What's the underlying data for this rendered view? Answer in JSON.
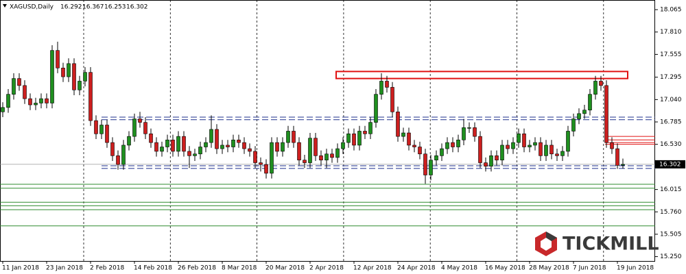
{
  "chart_data": {
    "type": "candlestick",
    "header": {
      "symbol": "XAGUSD,Daily"
    },
    "watermark": "TICKMILL",
    "ylim": [
      15.2,
      18.175
    ],
    "yticks": [
      18.065,
      {
        "value": 17.81,
        "label": "17.810"
      },
      17.555,
      17.295,
      {
        "value": 17.04,
        "label": "17.040"
      },
      16.785,
      {
        "value": 16.53,
        "label": "16.530"
      },
      16.015,
      {
        "value": 15.76,
        "label": "15.760"
      },
      15.505,
      {
        "value": 15.25,
        "label": "15.250"
      }
    ],
    "categories": [
      "11 Jan 2018",
      null,
      null,
      null,
      null,
      null,
      null,
      null,
      "23 Jan 2018",
      null,
      null,
      null,
      null,
      null,
      null,
      null,
      "2 Feb 2018",
      null,
      null,
      null,
      null,
      null,
      null,
      null,
      "14 Feb 2018",
      null,
      null,
      null,
      null,
      null,
      null,
      null,
      "26 Feb 2018",
      null,
      null,
      null,
      null,
      null,
      null,
      null,
      "8 Mar 2018",
      null,
      null,
      null,
      null,
      null,
      null,
      null,
      "20 Mar 2018",
      null,
      null,
      null,
      null,
      null,
      null,
      null,
      "2 Apr 2018",
      null,
      null,
      null,
      null,
      null,
      null,
      null,
      "12 Apr 2018",
      null,
      null,
      null,
      null,
      null,
      null,
      null,
      "24 Apr 2018",
      null,
      null,
      null,
      null,
      null,
      null,
      null,
      "4 May 2018",
      null,
      null,
      null,
      null,
      null,
      null,
      null,
      "16 May 2018",
      null,
      null,
      null,
      null,
      null,
      null,
      null,
      "28 May 2018",
      null,
      null,
      null,
      null,
      null,
      null,
      null,
      "7 Jun 2018",
      null,
      null,
      null,
      null,
      null,
      null,
      null,
      "19 Jun 2018",
      null
    ],
    "open": [
      16.9,
      16.95,
      17.1,
      17.28,
      17.2,
      17.05,
      16.98,
      17.0,
      17.05,
      17.0,
      17.6,
      17.4,
      17.3,
      17.45,
      17.15,
      17.25,
      17.35,
      16.8,
      16.65,
      16.75,
      16.55,
      16.4,
      16.3,
      16.52,
      16.62,
      16.82,
      16.78,
      16.65,
      16.55,
      16.45,
      16.5,
      16.58,
      16.45,
      16.62,
      16.45,
      16.4,
      16.42,
      16.5,
      16.55,
      16.7,
      16.48,
      16.52,
      16.5,
      16.58,
      16.55,
      16.48,
      16.45,
      16.32,
      16.3,
      16.2,
      16.55,
      16.45,
      16.55,
      16.68,
      16.55,
      16.35,
      16.32,
      16.6,
      16.4,
      16.35,
      16.42,
      16.38,
      16.48,
      16.55,
      16.65,
      16.52,
      16.68,
      16.65,
      16.78,
      17.1,
      17.25,
      17.18,
      16.9,
      16.62,
      16.66,
      16.52,
      16.5,
      16.42,
      16.18,
      16.35,
      16.4,
      16.48,
      16.55,
      16.5,
      16.58,
      16.72,
      16.72,
      16.62,
      16.32,
      16.28,
      16.4,
      16.35,
      16.52,
      16.48,
      16.55,
      16.65,
      16.5,
      16.52,
      16.55,
      16.4,
      16.52,
      16.42,
      16.4,
      16.45,
      16.68,
      16.82,
      16.88,
      16.92,
      17.1,
      17.25,
      17.2,
      16.55,
      16.48,
      16.292
    ],
    "high": [
      17.01,
      17.16,
      17.34,
      17.34,
      17.26,
      17.11,
      17.06,
      17.11,
      17.11,
      17.66,
      17.7,
      17.46,
      17.51,
      17.51,
      17.31,
      17.41,
      17.41,
      16.86,
      16.81,
      16.81,
      16.61,
      16.46,
      16.58,
      16.68,
      16.88,
      16.9,
      16.84,
      16.71,
      16.61,
      16.56,
      16.64,
      16.64,
      16.68,
      16.68,
      16.51,
      16.48,
      16.56,
      16.61,
      16.86,
      16.76,
      16.58,
      16.58,
      16.64,
      16.64,
      16.61,
      16.54,
      16.51,
      16.38,
      16.36,
      16.61,
      16.61,
      16.61,
      16.74,
      16.74,
      16.61,
      16.41,
      16.66,
      16.66,
      16.46,
      16.48,
      16.48,
      16.54,
      16.61,
      16.71,
      16.71,
      16.74,
      16.74,
      16.84,
      17.16,
      17.34,
      17.31,
      17.24,
      16.96,
      16.72,
      16.72,
      16.58,
      16.56,
      16.48,
      16.41,
      16.46,
      16.54,
      16.61,
      16.61,
      16.64,
      16.82,
      16.78,
      16.78,
      16.68,
      16.38,
      16.46,
      16.46,
      16.58,
      16.58,
      16.61,
      16.71,
      16.71,
      16.58,
      16.61,
      16.61,
      16.58,
      16.58,
      16.48,
      16.51,
      16.74,
      16.88,
      16.94,
      16.98,
      17.16,
      17.31,
      17.31,
      17.26,
      16.61,
      16.54,
      16.367
    ],
    "low": [
      16.84,
      16.89,
      17.04,
      17.14,
      16.99,
      16.92,
      16.92,
      16.94,
      16.94,
      16.94,
      17.34,
      17.24,
      17.24,
      17.09,
      17.09,
      17.19,
      16.74,
      16.59,
      16.59,
      16.49,
      16.34,
      16.24,
      16.24,
      16.46,
      16.56,
      16.72,
      16.59,
      16.49,
      16.39,
      16.39,
      16.44,
      16.39,
      16.39,
      16.39,
      16.26,
      16.34,
      16.36,
      16.44,
      16.49,
      16.42,
      16.42,
      16.44,
      16.44,
      16.49,
      16.42,
      16.39,
      16.26,
      16.22,
      16.14,
      16.14,
      16.39,
      16.39,
      16.49,
      16.49,
      16.29,
      16.26,
      16.26,
      16.34,
      16.29,
      16.26,
      16.32,
      16.32,
      16.42,
      16.49,
      16.46,
      16.46,
      16.59,
      16.59,
      16.72,
      17.04,
      17.12,
      16.84,
      16.56,
      16.56,
      16.46,
      16.44,
      16.36,
      16.08,
      16.12,
      16.29,
      16.34,
      16.42,
      16.44,
      16.44,
      16.52,
      16.66,
      16.56,
      16.26,
      16.22,
      16.22,
      16.29,
      16.29,
      16.42,
      16.42,
      16.49,
      16.44,
      16.44,
      16.46,
      16.34,
      16.34,
      16.36,
      16.34,
      16.34,
      16.39,
      16.62,
      16.76,
      16.82,
      16.86,
      17.04,
      17.14,
      16.49,
      16.42,
      16.25,
      16.253
    ],
    "close": [
      16.95,
      17.1,
      17.28,
      17.2,
      17.05,
      16.98,
      17.0,
      17.05,
      17.0,
      17.6,
      17.4,
      17.3,
      17.45,
      17.15,
      17.25,
      17.35,
      16.8,
      16.65,
      16.75,
      16.55,
      16.4,
      16.3,
      16.52,
      16.62,
      16.82,
      16.78,
      16.65,
      16.55,
      16.45,
      16.5,
      16.58,
      16.45,
      16.62,
      16.45,
      16.4,
      16.42,
      16.5,
      16.55,
      16.7,
      16.48,
      16.52,
      16.5,
      16.58,
      16.55,
      16.48,
      16.45,
      16.32,
      16.3,
      16.2,
      16.55,
      16.45,
      16.55,
      16.68,
      16.55,
      16.35,
      16.32,
      16.6,
      16.4,
      16.35,
      16.42,
      16.38,
      16.48,
      16.55,
      16.65,
      16.52,
      16.68,
      16.65,
      16.78,
      17.1,
      17.25,
      17.18,
      16.9,
      16.62,
      16.66,
      16.52,
      16.5,
      16.42,
      16.18,
      16.35,
      16.4,
      16.48,
      16.55,
      16.5,
      16.58,
      16.72,
      16.72,
      16.62,
      16.32,
      16.28,
      16.4,
      16.35,
      16.52,
      16.48,
      16.55,
      16.65,
      16.5,
      16.52,
      16.55,
      16.4,
      16.52,
      16.42,
      16.4,
      16.45,
      16.68,
      16.82,
      16.88,
      16.92,
      17.1,
      17.25,
      17.2,
      16.55,
      16.48,
      16.29,
      16.302
    ],
    "up_color": "#1f8f1f",
    "down_color": "#cc1f1f",
    "blue_levels": {
      "color": "#1c2f8c",
      "values": [
        16.84,
        16.81,
        16.285,
        16.255
      ]
    },
    "green_levels": {
      "color": "#2e8b2e",
      "values": [
        16.075,
        16.03,
        15.87,
        15.83,
        15.785,
        15.6
      ]
    },
    "red_levels": {
      "color": "#e01010",
      "values": [
        16.62,
        16.58,
        16.55,
        16.53
      ]
    },
    "red_zone": {
      "color": "#e01010",
      "values": [
        17.36,
        17.28
      ]
    }
  }
}
